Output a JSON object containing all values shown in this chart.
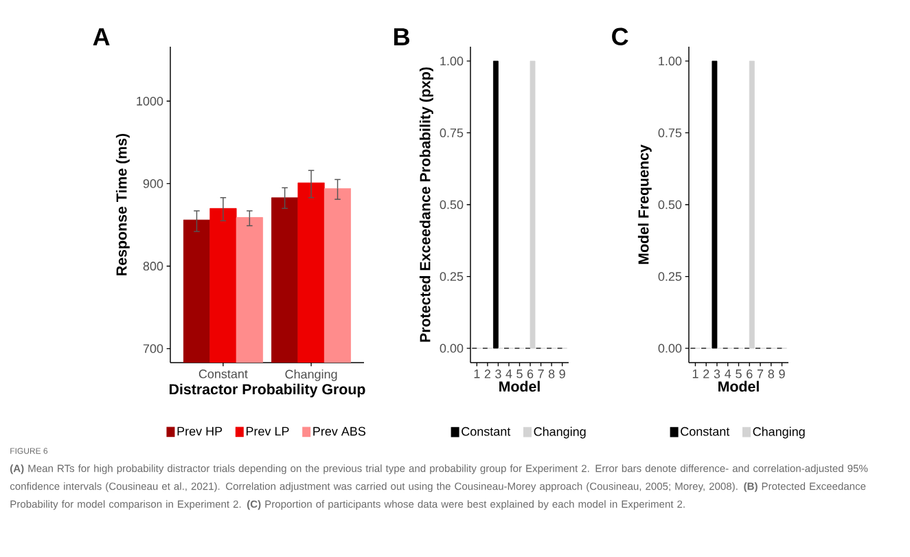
{
  "chart_data": [
    {
      "type": "bar",
      "title": "A",
      "xlabel": "Distractor Probability Group",
      "ylabel": "Response Time (ms)",
      "categories": [
        "Constant",
        "Changing"
      ],
      "series": [
        {
          "name": "Prev HP",
          "color": "#9e0000",
          "values": [
            856,
            883
          ],
          "errors": [
            [
              842,
              867
            ],
            [
              870,
              895
            ]
          ]
        },
        {
          "name": "Prev LP",
          "color": "#ee0000",
          "values": [
            870,
            901
          ],
          "errors": [
            [
              855,
              883
            ],
            [
              883,
              916
            ]
          ]
        },
        {
          "name": "Prev ABS",
          "color": "#ff8c8c",
          "values": [
            859,
            894
          ],
          "errors": [
            [
              849,
              867
            ],
            [
              881,
              905
            ]
          ]
        }
      ],
      "ylim": [
        683,
        1066
      ],
      "yticks": [
        700,
        800,
        900,
        1000
      ],
      "legend": "bottom",
      "annotations": [
        "FIGURE 6",
        "**(A)** Mean RTs for high probability distractor trials depending on the previous trial type and probability group for Experiment 2. Error bars denote difference- and correlation-adjusted 95% confidence intervals (Cousineau et al., 2021). Correlation adjustment was carried out using the Cousineau-Morey approach (Cousineau, 2005; Morey, 2008). **(B)** Protected Exceedance Probability for model comparison in Experiment 2. **(C)** Proportion of participants whose data were best explained by each model in Experiment 2."
      ]
    },
    {
      "type": "bar",
      "title": "B",
      "xlabel": "Model",
      "ylabel": "Protected Exceedance Probability (pxp)",
      "categories": [
        "1",
        "2",
        "3",
        "4",
        "5",
        "6",
        "7",
        "8",
        "9"
      ],
      "series": [
        {
          "name": "Constant",
          "color": "#000000",
          "values": [
            0,
            0,
            1,
            0,
            0,
            0,
            0,
            0,
            0
          ]
        },
        {
          "name": "Changing",
          "color": "#d3d3d3",
          "values": [
            0,
            0,
            0,
            0,
            0,
            1,
            0,
            0,
            0
          ]
        }
      ],
      "ylim": [
        -0.05,
        1.05
      ],
      "yticks": [
        {
          "value": 0,
          "label": "0.00"
        },
        {
          "value": 0.25,
          "label": "0.25"
        },
        {
          "value": 0.5,
          "label": "0.50"
        },
        {
          "value": 0.75,
          "label": "0.75"
        },
        {
          "value": 1,
          "label": "1.00"
        }
      ],
      "legend": "bottom"
    },
    {
      "type": "bar",
      "title": "C",
      "xlabel": "Model",
      "ylabel": "Model Frequency",
      "categories": [
        "1",
        "2",
        "3",
        "4",
        "5",
        "6",
        "7",
        "8",
        "9"
      ],
      "series": [
        {
          "name": "Constant",
          "color": "#000000",
          "values": [
            0,
            0,
            1,
            0,
            0,
            0,
            0,
            0,
            0
          ]
        },
        {
          "name": "Changing",
          "color": "#d3d3d3",
          "values": [
            0,
            0,
            0,
            0,
            0,
            1,
            0,
            0,
            0
          ]
        }
      ],
      "ylim": [
        -0.05,
        1.05
      ],
      "yticks": [
        {
          "value": 0,
          "label": "0.00"
        },
        {
          "value": 0.25,
          "label": "0.25"
        },
        {
          "value": 0.5,
          "label": "0.50"
        },
        {
          "value": 0.75,
          "label": "0.75"
        },
        {
          "value": 1,
          "label": "1.00"
        }
      ],
      "legend": "bottom"
    }
  ]
}
